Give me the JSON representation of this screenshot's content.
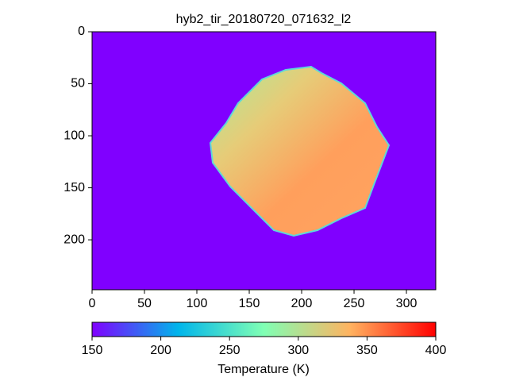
{
  "chart_data": {
    "type": "image",
    "title": "hyb2_tir_20180720_071632_l2",
    "xlim": [
      0,
      328
    ],
    "ylim": [
      248,
      0
    ],
    "xticks": [
      0,
      50,
      100,
      150,
      200,
      250,
      300
    ],
    "yticks": [
      0,
      50,
      100,
      150,
      200
    ],
    "cmap": "rainbow",
    "colorbar": {
      "label": "Temperature (K)",
      "clim": [
        150,
        400
      ],
      "ticks": [
        150,
        200,
        250,
        300,
        350,
        400
      ]
    }
  }
}
